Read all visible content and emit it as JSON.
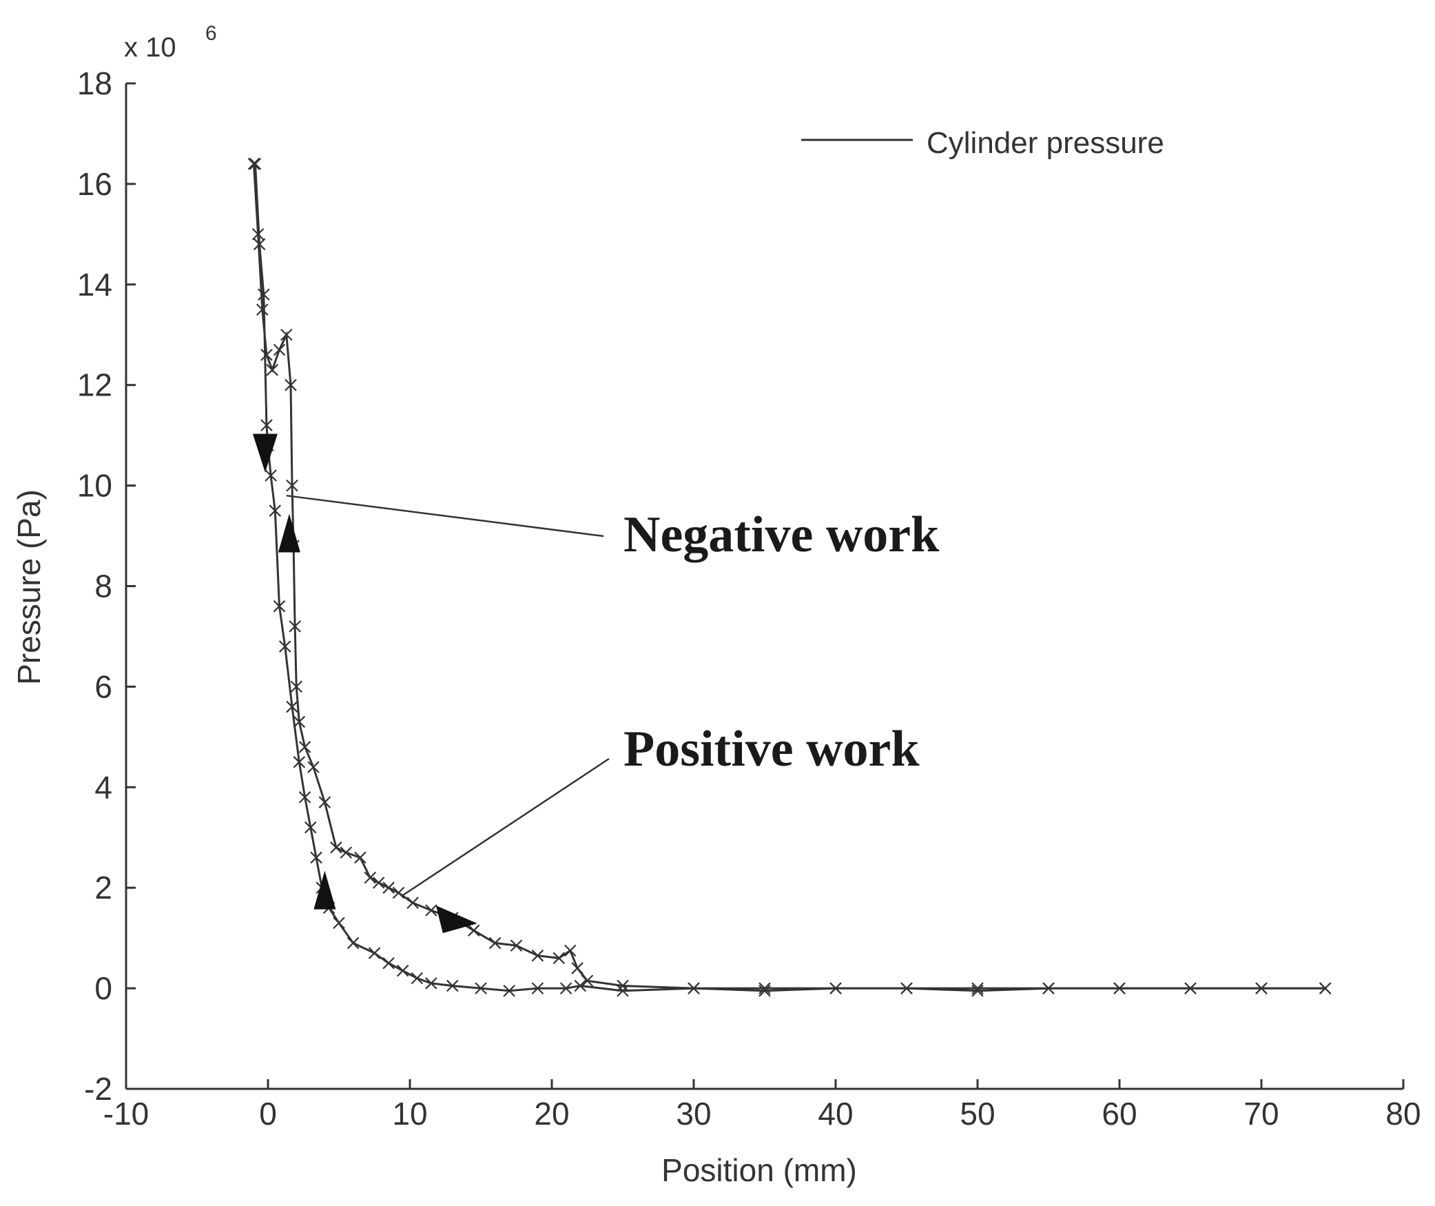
{
  "chart_data": {
    "type": "line",
    "xlabel": "Position (mm)",
    "ylabel": "Pressure (Pa)",
    "y_multiplier_label": "x 10",
    "y_multiplier_exponent": "6",
    "xlim": [
      -10,
      80
    ],
    "ylim": [
      -2,
      18
    ],
    "x_ticks": [
      "-10",
      "0",
      "10",
      "20",
      "30",
      "40",
      "50",
      "60",
      "70",
      "80"
    ],
    "y_ticks": [
      "-2",
      "0",
      "2",
      "4",
      "6",
      "8",
      "10",
      "12",
      "14",
      "16",
      "18"
    ],
    "grid": false,
    "legend_position": "top-right",
    "series": [
      {
        "name": "Cylinder pressure",
        "marker": "x",
        "color": "#333333",
        "x": [
          -1.0,
          -0.7,
          -0.4,
          -0.1,
          0.3,
          0.8,
          1.3,
          1.6,
          1.7,
          1.8,
          1.9,
          2.0,
          2.2,
          2.6,
          3.2,
          4.0,
          4.8,
          5.5,
          6.5,
          7.2,
          7.8,
          8.5,
          9.2,
          10.2,
          11.5,
          13.0,
          14.5,
          16.0,
          17.5,
          19.0,
          20.5,
          21.3,
          21.8,
          22.5,
          25.0,
          30.0,
          35.0,
          40.0,
          45.0,
          50.0,
          55.0,
          60.0,
          65.0,
          70.0,
          74.5
        ],
        "y": [
          16.4,
          15.0,
          13.5,
          12.6,
          12.3,
          12.7,
          13.0,
          12.0,
          10.0,
          8.8,
          7.2,
          6.0,
          5.3,
          4.8,
          4.4,
          3.7,
          2.8,
          2.7,
          2.6,
          2.2,
          2.1,
          2.0,
          1.9,
          1.7,
          1.55,
          1.4,
          1.15,
          0.9,
          0.85,
          0.65,
          0.6,
          0.75,
          0.4,
          0.15,
          0.05,
          0.0,
          0.0,
          0.0,
          0.0,
          0.0,
          0.0,
          0.0,
          0.0,
          0.0,
          0.0
        ]
      },
      {
        "name": "",
        "marker": "x",
        "color": "#333333",
        "x": [
          -0.9,
          -0.6,
          -0.3,
          -0.1,
          0.0,
          0.2,
          0.5,
          0.8,
          1.2,
          1.7,
          2.2,
          2.6,
          3.0,
          3.4,
          3.8,
          4.3,
          5.0,
          6.0,
          7.5,
          8.5,
          9.5,
          10.5,
          11.5,
          13.0,
          15.0,
          17.0,
          19.0,
          21.0,
          22.0,
          25.0,
          30.0,
          35.0,
          40.0,
          45.0,
          50.0,
          55.0,
          60.0,
          65.0,
          70.0,
          74.5
        ],
        "y": [
          16.4,
          14.8,
          13.8,
          11.2,
          10.8,
          10.2,
          9.5,
          7.6,
          6.8,
          5.6,
          4.5,
          3.8,
          3.2,
          2.6,
          2.0,
          1.6,
          1.3,
          0.9,
          0.7,
          0.5,
          0.35,
          0.2,
          0.1,
          0.05,
          0.0,
          -0.05,
          0.0,
          0.0,
          0.05,
          -0.05,
          0.0,
          -0.05,
          0.0,
          0.0,
          -0.05,
          0.0,
          0.0,
          0.0,
          0.0,
          0.0
        ]
      }
    ],
    "direction_arrows": [
      {
        "x": -0.2,
        "y": 10.7,
        "direction": "down"
      },
      {
        "x": 1.5,
        "y": 9.0,
        "direction": "up"
      },
      {
        "x": 4.0,
        "y": 1.9,
        "direction": "up"
      },
      {
        "x": 13.0,
        "y": 1.4,
        "direction": "right"
      }
    ],
    "annotations": [
      {
        "text": "Negative work",
        "target_x": 1.3,
        "target_y": 9.8
      },
      {
        "text": "Positive work",
        "target_x": 9.5,
        "target_y": 1.85
      }
    ]
  }
}
